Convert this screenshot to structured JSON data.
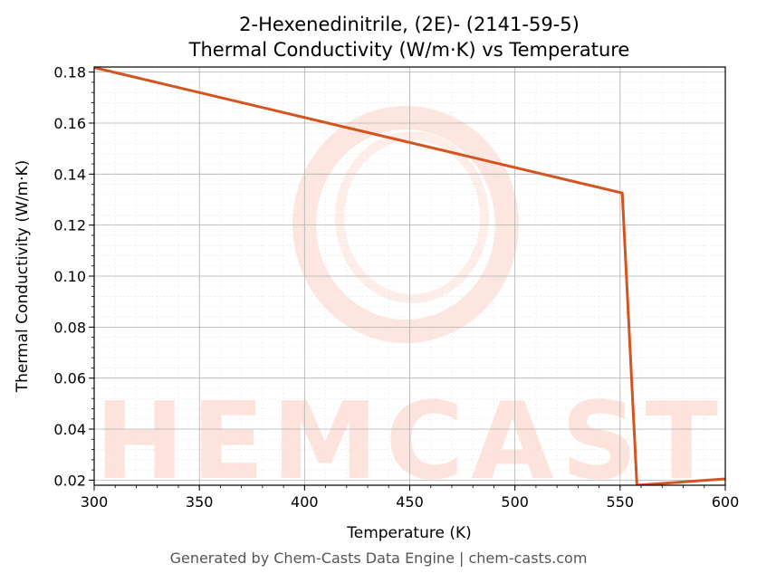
{
  "chart_data": {
    "type": "line",
    "title_line1": "2-Hexenedinitrile, (2E)- (2141-59-5)",
    "title_line2": "Thermal Conductivity (W/m·K) vs Temperature",
    "xlabel": "Temperature (K)",
    "ylabel": "Thermal Conductivity (W/m·K)",
    "xlim": [
      300,
      600
    ],
    "ylim": [
      0.018,
      0.182
    ],
    "xticks": [
      300,
      350,
      400,
      450,
      500,
      550,
      600
    ],
    "yticks": [
      "0.02",
      "0.04",
      "0.06",
      "0.08",
      "0.10",
      "0.12",
      "0.14",
      "0.16",
      "0.18"
    ],
    "grid": true,
    "series": [
      {
        "color": "#d4541f",
        "x": [
          300,
          551,
          558,
          600
        ],
        "y": [
          0.1818,
          0.1326,
          0.018,
          0.0205
        ]
      }
    ]
  },
  "watermark": {
    "text": "CHEMCASTS",
    "color": "#fde3dc"
  },
  "footer": "Generated by Chem-Casts Data Engine | chem-casts.com"
}
